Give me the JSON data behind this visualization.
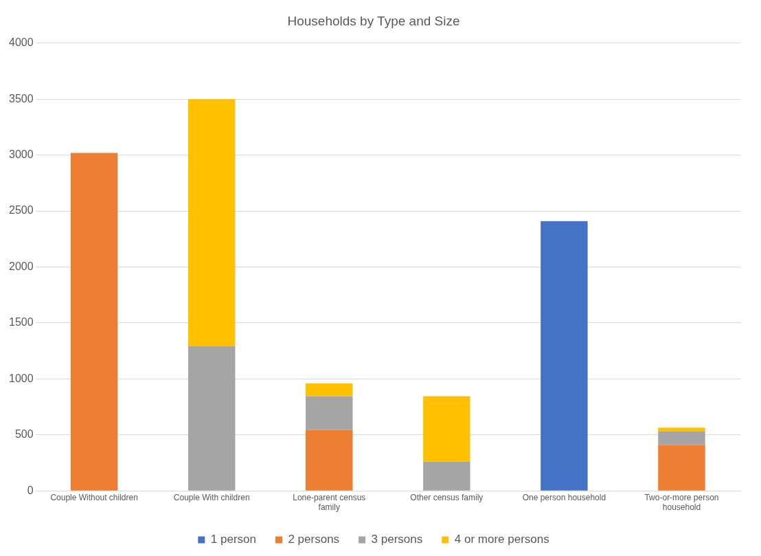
{
  "chart_data": {
    "type": "bar",
    "title": "Households by Type and Size",
    "categories": [
      "Couple Without children",
      "Couple With children",
      "Lone-parent census family",
      "Other census family",
      "One person household",
      "Two-or-more person household"
    ],
    "series": [
      {
        "name": "1 person",
        "color": "#4472c4",
        "values": [
          null,
          null,
          null,
          null,
          2410,
          null
        ]
      },
      {
        "name": "2 persons",
        "color": "#ed7d31",
        "values": [
          3020,
          null,
          545,
          null,
          null,
          410
        ]
      },
      {
        "name": "3 persons",
        "color": "#a5a5a5",
        "values": [
          null,
          1290,
          300,
          260,
          null,
          120
        ]
      },
      {
        "name": "4 or more persons",
        "color": "#ffc000",
        "values": [
          null,
          2210,
          115,
          585,
          null,
          35
        ]
      }
    ],
    "stacked": true,
    "ylim": [
      0,
      4000
    ],
    "yticks": [
      0,
      500,
      1000,
      1500,
      2000,
      2500,
      3000,
      3500,
      4000
    ],
    "grid": "y",
    "legend": "bottom"
  }
}
